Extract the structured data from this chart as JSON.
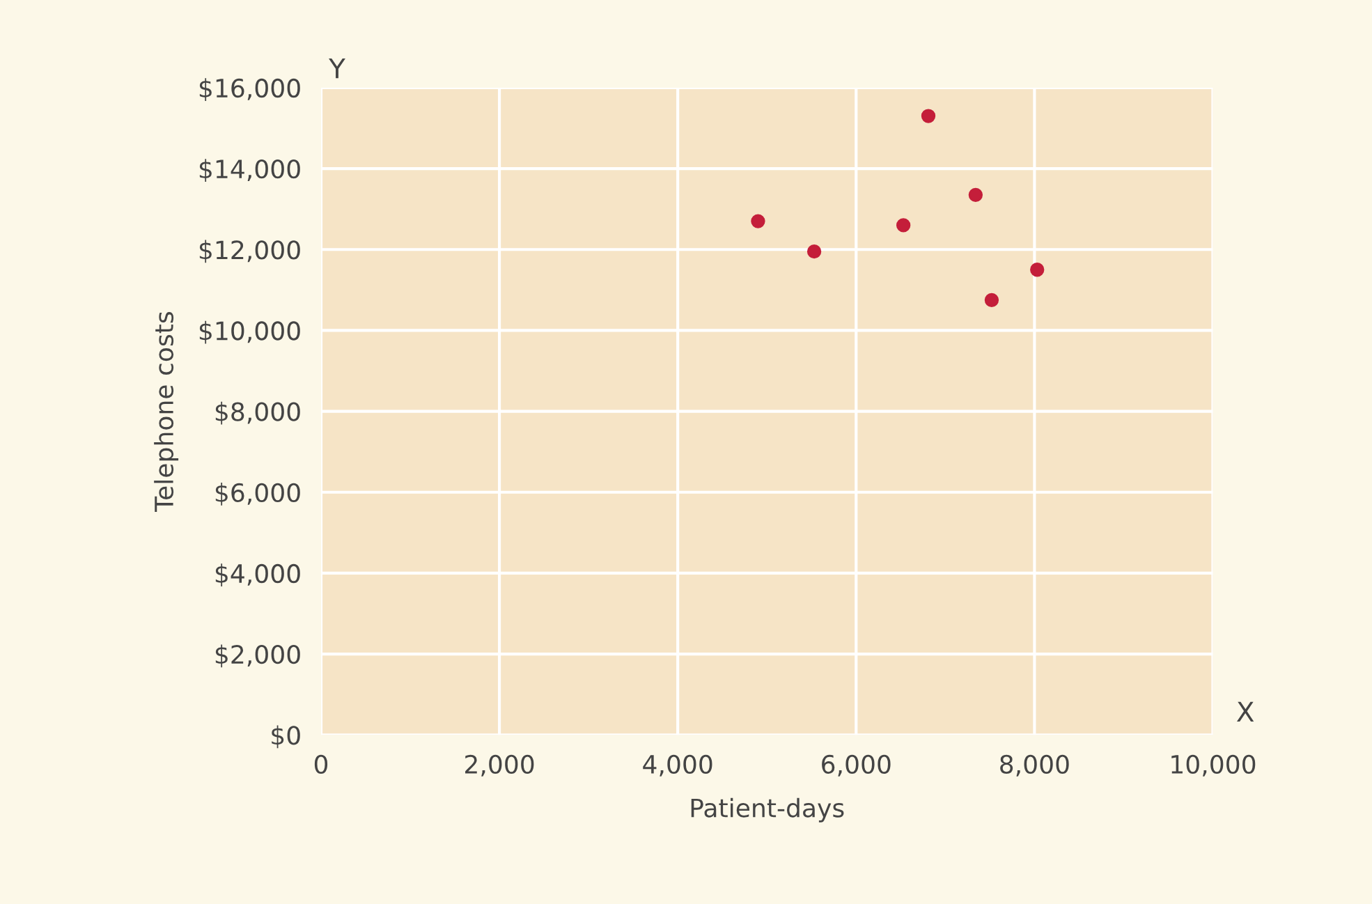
{
  "chart_data": {
    "type": "scatter",
    "xlabel": "Patient-days",
    "ylabel": "Telephone costs",
    "x": [
      4900,
      5530,
      6530,
      6810,
      7340,
      7520,
      8030
    ],
    "series": [
      {
        "color": "#c41e3a",
        "values": [
          12700,
          11950,
          12600,
          15300,
          13350,
          10750,
          11500
        ]
      }
    ],
    "xlim": [
      0,
      10000
    ],
    "ylim": [
      0,
      16000
    ],
    "xticks": [
      0,
      {
        "value": 2000,
        "label": "2,000"
      },
      {
        "value": 4000,
        "label": "4,000"
      },
      {
        "value": 6000,
        "label": "6,000"
      },
      {
        "value": 8000,
        "label": "8,000"
      },
      {
        "value": 10000,
        "label": "10,000"
      }
    ],
    "yticks": [
      {
        "value": 0,
        "label": "$0"
      },
      {
        "value": 2000,
        "label": "$2,000"
      },
      {
        "value": 4000,
        "label": "$4,000"
      },
      {
        "value": 6000,
        "label": "$6,000"
      },
      {
        "value": 8000,
        "label": "$8,000"
      },
      {
        "value": 10000,
        "label": "$10,000"
      },
      {
        "value": 12000,
        "label": "$12,000"
      },
      {
        "value": 14000,
        "label": "$14,000"
      },
      {
        "value": 16000,
        "label": "$16,000"
      }
    ],
    "grid": true,
    "marker": "circle",
    "annotations": [
      "Y",
      "X"
    ]
  }
}
